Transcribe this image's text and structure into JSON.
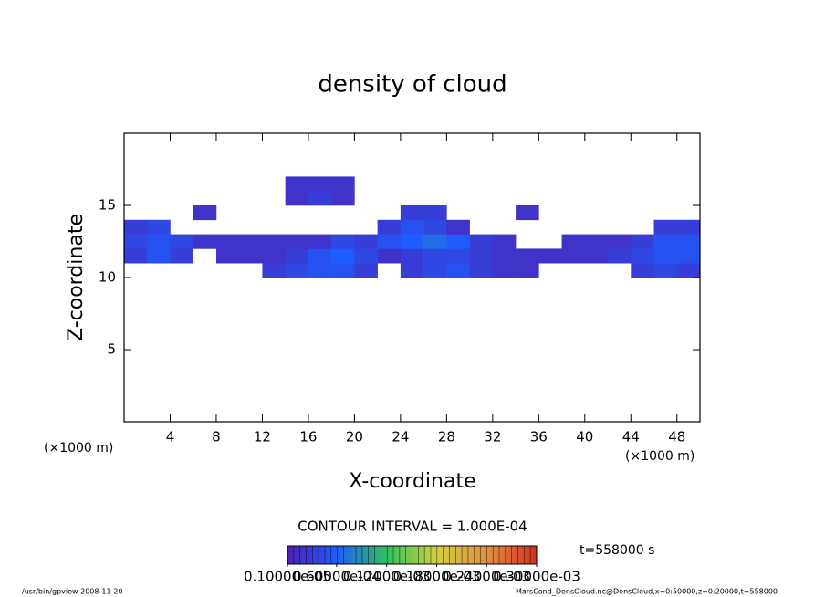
{
  "chart_data": {
    "type": "heatmap",
    "title": "density of cloud",
    "xlabel": "X-coordinate",
    "ylabel": "Z-coordinate",
    "xunit": "(×1000 m)",
    "xunit_right": "(×1000 m)",
    "contour_interval": "CONTOUR INTERVAL = 1.000E-04",
    "time_label": "t=558000 s",
    "footer_left": "/usr/bin/gpview  2008-11-20",
    "footer_right": "MarsCond_DensCloud.nc@DensCloud,x=0:50000,z=0:20000,t=558000",
    "xlim": [
      0,
      50
    ],
    "ylim": [
      0,
      20
    ],
    "xticks": [
      4,
      8,
      12,
      16,
      20,
      24,
      28,
      32,
      36,
      40,
      44,
      48
    ],
    "yticks": [
      5,
      10,
      15
    ],
    "xbins": [
      0,
      2,
      4,
      6,
      8,
      10,
      12,
      14,
      16,
      18,
      20,
      22,
      24,
      26,
      28,
      30,
      32,
      34,
      36,
      38,
      40,
      42,
      44,
      46,
      48,
      50
    ],
    "zbins": [
      10,
      11,
      12,
      13,
      14,
      15,
      16,
      17
    ],
    "values": [
      [
        null,
        null,
        null,
        null,
        null,
        null,
        3e-05,
        4e-05,
        5e-05,
        5e-05,
        3e-05,
        null,
        3e-05,
        4e-05,
        5e-05,
        3e-05,
        2e-05,
        2e-05,
        null,
        null,
        null,
        null,
        3e-05,
        4e-05,
        3e-05
      ],
      [
        3e-05,
        5e-05,
        3e-05,
        null,
        2e-05,
        2e-05,
        2e-05,
        3e-05,
        5e-05,
        6e-05,
        4e-05,
        2e-05,
        3e-05,
        4e-05,
        4e-05,
        3e-05,
        2e-05,
        2e-05,
        2e-05,
        2e-05,
        2e-05,
        3e-05,
        4e-05,
        5e-05,
        5e-05
      ],
      [
        4e-05,
        5e-05,
        4e-05,
        2e-05,
        2e-05,
        2e-05,
        2e-05,
        2e-05,
        2e-05,
        4e-05,
        3e-05,
        5e-05,
        6e-05,
        7e-05,
        6e-05,
        3e-05,
        2e-05,
        null,
        null,
        2e-05,
        2e-05,
        2e-05,
        3e-05,
        5e-05,
        5e-05
      ],
      [
        3e-05,
        4e-05,
        null,
        null,
        null,
        null,
        null,
        null,
        null,
        null,
        null,
        3e-05,
        5e-05,
        4e-05,
        2e-05,
        null,
        null,
        null,
        null,
        null,
        null,
        null,
        null,
        3e-05,
        3e-05
      ],
      [
        null,
        null,
        null,
        2e-05,
        null,
        null,
        null,
        null,
        null,
        null,
        null,
        null,
        3e-05,
        3e-05,
        null,
        null,
        null,
        2e-05,
        null,
        null,
        null,
        null,
        null,
        null,
        null
      ],
      [
        null,
        null,
        null,
        null,
        null,
        null,
        null,
        2e-05,
        3e-05,
        2e-05,
        null,
        null,
        null,
        null,
        null,
        null,
        null,
        null,
        null,
        null,
        null,
        null,
        null,
        null,
        null
      ],
      [
        null,
        null,
        null,
        null,
        null,
        null,
        null,
        2e-05,
        2e-05,
        2e-05,
        null,
        null,
        null,
        null,
        null,
        null,
        null,
        null,
        null,
        null,
        null,
        null,
        null,
        null,
        null
      ]
    ],
    "colorbar_ticks": [
      {
        "value": 1e-06,
        "label": "0.10000e-05"
      },
      {
        "value": 6e-05,
        "label": "0.60000e-04"
      },
      {
        "value": 0.00012,
        "label": "0.12000e-03"
      },
      {
        "value": 0.00018,
        "label": "0.18000e-03"
      },
      {
        "value": 0.00024,
        "label": "0.24000e-03"
      },
      {
        "value": 0.0003,
        "label": "0.30000e-03"
      }
    ],
    "colorbar_colors": [
      "#5020b0",
      "#1e5cff",
      "#30c060",
      "#d0d040",
      "#e09040",
      "#d03020"
    ]
  }
}
